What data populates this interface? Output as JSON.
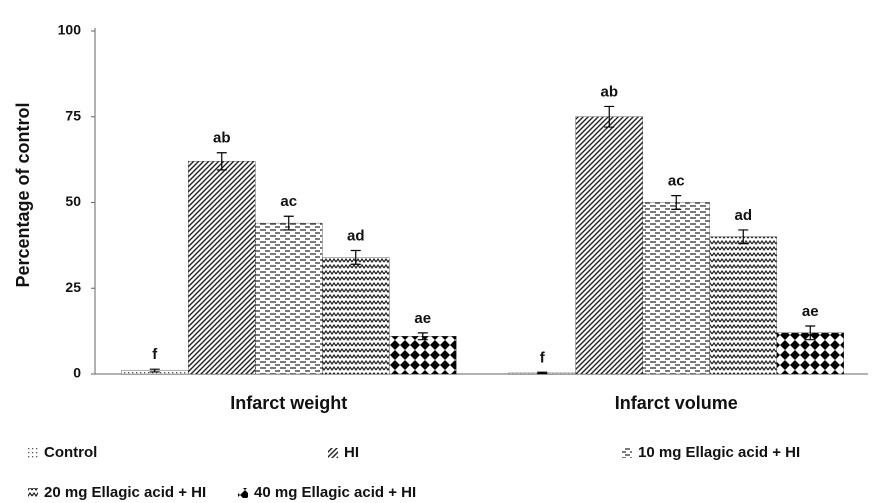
{
  "chart_data": {
    "type": "bar",
    "ylabel": "Percentage  of control",
    "categories": [
      "Infarct weight",
      "Infarct volume"
    ],
    "ylim": [
      0,
      100
    ],
    "yticks": [
      0,
      25,
      50,
      75,
      100
    ],
    "grid": false,
    "series": [
      {
        "name": "Control",
        "color": "#000000",
        "pattern": "dots",
        "values": [
          1,
          0.3
        ],
        "errors": [
          0.4,
          0.2
        ],
        "letters": [
          "f",
          "f"
        ]
      },
      {
        "name": "HI",
        "color": "#000000",
        "pattern": "diagonal",
        "values": [
          62,
          75
        ],
        "errors": [
          2.5,
          3
        ],
        "letters": [
          "ab",
          "ab"
        ]
      },
      {
        "name": "10 mg Ellagic acid + HI",
        "color": "#000000",
        "pattern": "dashes",
        "values": [
          44,
          50
        ],
        "errors": [
          2,
          2
        ],
        "letters": [
          "ac",
          "ac"
        ]
      },
      {
        "name": "20 mg Ellagic acid + HI",
        "color": "#000000",
        "pattern": "zigzag",
        "values": [
          34,
          40
        ],
        "errors": [
          2,
          2
        ],
        "letters": [
          "ad",
          "ad"
        ]
      },
      {
        "name": "40 mg Ellagic acid + HI",
        "color": "#000000",
        "pattern": "diamonds",
        "values": [
          11,
          12
        ],
        "errors": [
          1,
          2
        ],
        "letters": [
          "ae",
          "ae"
        ]
      }
    ]
  }
}
